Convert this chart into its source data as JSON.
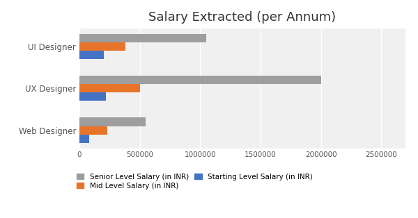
{
  "title": "Salary Extracted (per Annum)",
  "categories": [
    "Web Designer",
    "UX Designer",
    "UI Designer"
  ],
  "series": [
    {
      "label": "Senior Level Salary (in INR)",
      "color": "#9E9E9E",
      "values": [
        550000,
        2000000,
        1050000
      ]
    },
    {
      "label": "Mid Level Salary (in INR)",
      "color": "#E8742A",
      "values": [
        230000,
        500000,
        380000
      ]
    },
    {
      "label": "Starting Level Salary (in INR)",
      "color": "#4472C4",
      "values": [
        80000,
        220000,
        200000
      ]
    }
  ],
  "xlim": [
    0,
    2700000
  ],
  "xticks": [
    0,
    500000,
    1000000,
    1500000,
    2000000,
    2500000
  ],
  "xtick_labels": [
    "0",
    "500000",
    "1000000",
    "1500000",
    "2000000",
    "2500000"
  ],
  "outer_bg_color": "#FFFFFF",
  "inner_bg_color": "#F0F0F0",
  "chart_panel_color": "#F0F0F0",
  "title_fontsize": 13,
  "tick_fontsize": 7.5,
  "label_fontsize": 8.5,
  "legend_fontsize": 7.5,
  "bar_height": 0.2
}
